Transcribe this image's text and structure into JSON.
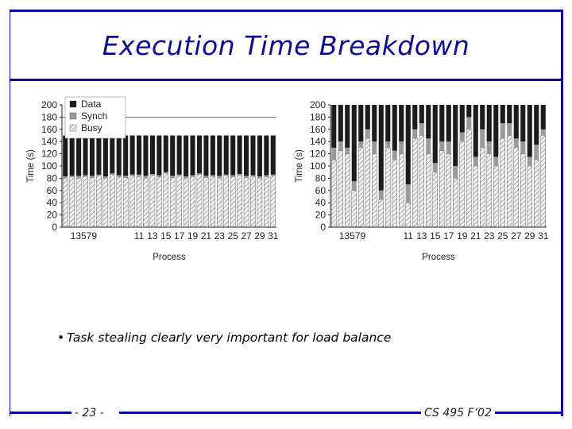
{
  "slide": {
    "title": "Execution Time Breakdown",
    "bullet": "Task stealing clearly very important for load balance",
    "page_number": "- 23 -",
    "course": "CS 495 F’02"
  },
  "colors": {
    "frame": "#0c0c9c",
    "data": "#1c1c1c",
    "synch": "#9a9a9a",
    "busy_fill": "#f2f2f2",
    "busy_hatch": "#555555"
  },
  "chart_data": [
    {
      "type": "bar",
      "stacked": true,
      "xlabel": "Process",
      "ylabel": "Time (s)",
      "ylim": [
        0,
        200
      ],
      "yticks": [
        0,
        20,
        40,
        60,
        80,
        100,
        120,
        140,
        160,
        180,
        200
      ],
      "x_tick_labels": [
        "13579",
        "11",
        "13",
        "15",
        "17",
        "19",
        "21",
        "23",
        "25",
        "27",
        "29",
        "31"
      ],
      "legend": [
        "Data",
        "Synch",
        "Busy"
      ],
      "legend_position": "top-left",
      "reference_line": 180,
      "categories": [
        0,
        1,
        2,
        3,
        4,
        5,
        6,
        7,
        8,
        9,
        10,
        11,
        12,
        13,
        14,
        15,
        16,
        17,
        18,
        19,
        20,
        21,
        22,
        23,
        24,
        25,
        26,
        27,
        28,
        29,
        30,
        31
      ],
      "series": [
        {
          "name": "Busy",
          "values": [
            80,
            82,
            80,
            83,
            81,
            84,
            80,
            86,
            82,
            81,
            84,
            83,
            80,
            85,
            82,
            88,
            81,
            84,
            80,
            82,
            86,
            81,
            83,
            80,
            84,
            82,
            85,
            81,
            83,
            80,
            82,
            84
          ]
        },
        {
          "name": "Synch",
          "values": [
            3,
            2,
            4,
            2,
            3,
            2,
            3,
            2,
            3,
            3,
            2,
            3,
            4,
            2,
            3,
            2,
            3,
            2,
            3,
            3,
            2,
            3,
            2,
            4,
            2,
            3,
            2,
            3,
            2,
            3,
            3,
            2
          ]
        },
        {
          "name": "Data",
          "values": [
            67,
            66,
            66,
            65,
            66,
            64,
            67,
            62,
            65,
            66,
            64,
            64,
            66,
            63,
            65,
            60,
            66,
            64,
            67,
            65,
            62,
            66,
            65,
            66,
            64,
            65,
            63,
            66,
            65,
            67,
            65,
            64
          ]
        }
      ]
    },
    {
      "type": "bar",
      "stacked": true,
      "xlabel": "Process",
      "ylabel": "Time (s)",
      "ylim": [
        0,
        200
      ],
      "yticks": [
        0,
        20,
        40,
        60,
        80,
        100,
        120,
        140,
        160,
        180,
        200
      ],
      "x_tick_labels": [
        "13579",
        "11",
        "13",
        "15",
        "17",
        "19",
        "21",
        "23",
        "25",
        "27",
        "29",
        "31"
      ],
      "categories": [
        0,
        1,
        2,
        3,
        4,
        5,
        6,
        7,
        8,
        9,
        10,
        11,
        12,
        13,
        14,
        15,
        16,
        17,
        18,
        19,
        20,
        21,
        22,
        23,
        24,
        25,
        26,
        27,
        28,
        29,
        30,
        31
      ],
      "series": [
        {
          "name": "Busy",
          "values": [
            110,
            125,
            120,
            60,
            130,
            145,
            120,
            45,
            130,
            110,
            120,
            40,
            145,
            150,
            120,
            90,
            125,
            120,
            80,
            140,
            160,
            100,
            130,
            120,
            100,
            145,
            150,
            130,
            120,
            100,
            110,
            150
          ]
        },
        {
          "name": "Synch",
          "values": [
            20,
            15,
            10,
            15,
            10,
            15,
            20,
            15,
            10,
            15,
            20,
            30,
            15,
            20,
            25,
            15,
            15,
            20,
            20,
            15,
            20,
            15,
            30,
            20,
            15,
            25,
            20,
            15,
            20,
            15,
            25,
            10
          ]
        },
        {
          "name": "Data",
          "values": [
            70,
            60,
            70,
            125,
            60,
            40,
            60,
            140,
            60,
            75,
            60,
            130,
            40,
            30,
            55,
            95,
            60,
            60,
            100,
            45,
            20,
            85,
            40,
            60,
            85,
            30,
            30,
            55,
            60,
            85,
            65,
            40
          ]
        }
      ]
    }
  ]
}
